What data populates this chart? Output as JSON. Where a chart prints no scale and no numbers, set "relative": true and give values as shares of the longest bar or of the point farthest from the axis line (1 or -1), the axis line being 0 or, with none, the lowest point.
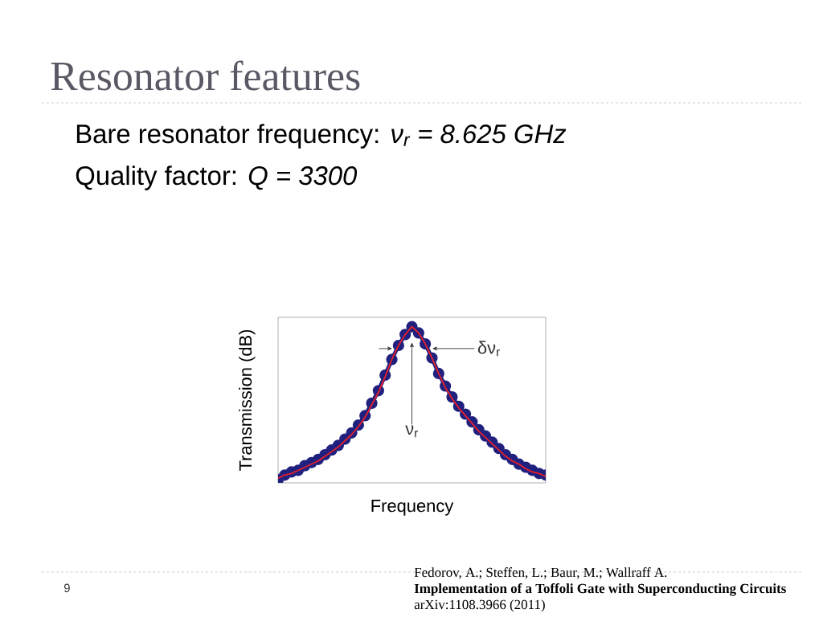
{
  "chart_data": {
    "type": "line",
    "title": "Resonator features",
    "xlabel": "Frequency",
    "ylabel": "Transmission (dB)",
    "relative": true,
    "categories": [
      null,
      null,
      null,
      null,
      null,
      null,
      null,
      null,
      null,
      null,
      null,
      null,
      null,
      null,
      null,
      null,
      null,
      null,
      null,
      null,
      null,
      null,
      null,
      null,
      null,
      null,
      null,
      null,
      null,
      null,
      null,
      null,
      null,
      null,
      null,
      null,
      null,
      null,
      null,
      null,
      null
    ],
    "series": [
      {
        "marker": "circle",
        "color": "#20207f",
        "values": [
          0.02,
          0.05,
          0.07,
          0.08,
          0.11,
          0.13,
          0.15,
          0.18,
          0.21,
          0.24,
          0.28,
          0.32,
          0.37,
          0.43,
          0.51,
          0.59,
          0.69,
          0.79,
          0.88,
          0.95,
          1.0,
          0.96,
          0.89,
          0.8,
          0.7,
          0.62,
          0.55,
          0.49,
          0.44,
          0.39,
          0.34,
          0.3,
          0.26,
          0.22,
          0.18,
          0.15,
          0.12,
          0.1,
          0.08,
          0.06,
          0.05
        ]
      },
      {
        "color": "#e8202a",
        "values": [
          0.03,
          0.05,
          0.06,
          0.08,
          0.1,
          0.12,
          0.14,
          0.17,
          0.2,
          0.23,
          0.27,
          0.31,
          0.36,
          0.42,
          0.5,
          0.58,
          0.68,
          0.79,
          0.88,
          0.95,
          1.0,
          0.96,
          0.89,
          0.8,
          0.7,
          0.61,
          0.54,
          0.48,
          0.43,
          0.38,
          0.33,
          0.29,
          0.25,
          0.21,
          0.17,
          0.14,
          0.12,
          0.09,
          0.07,
          0.06,
          0.04
        ]
      }
    ],
    "annotations": [
      "Bare resonator frequency: *ν$_{r}$ = 8.625 GHz*",
      "Quality factor: *Q = 3300*",
      "δν$_{r}$",
      "ν$_{r}$",
      "Fedorov, A.; Steffen, L.; Baur, M.; Wallraff A.",
      "Implementation of a Toffoli Gate with Superconducting Circuits",
      "arXiv:1108.3966 (2011)",
      "9"
    ]
  }
}
